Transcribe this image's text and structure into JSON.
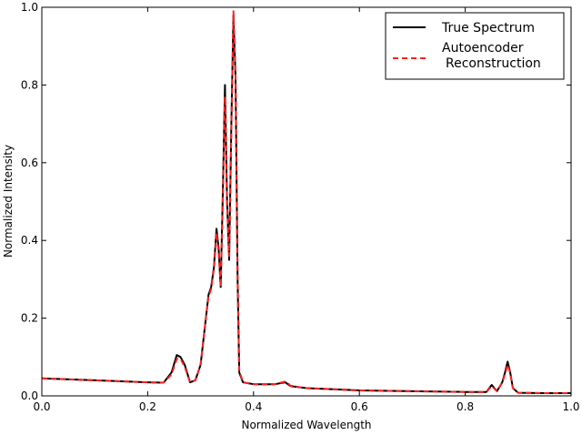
{
  "chart_data": {
    "type": "line",
    "title": "",
    "xlabel": "Normalized Wavelength",
    "ylabel": "Normalized Intensity",
    "xlim": [
      0.0,
      1.0
    ],
    "ylim": [
      0.0,
      1.0
    ],
    "xticks": [
      "0.0",
      "0.2",
      "0.4",
      "0.6",
      "0.8",
      "1.0"
    ],
    "yticks": [
      "0.0",
      "0.2",
      "0.4",
      "0.6",
      "0.8",
      "1.0"
    ],
    "grid": false,
    "legend_position": "top-right",
    "series": [
      {
        "name": "True Spectrum",
        "color": "#000000",
        "style": "solid",
        "x": [
          0.0,
          0.1,
          0.2,
          0.23,
          0.245,
          0.255,
          0.262,
          0.27,
          0.28,
          0.29,
          0.3,
          0.31,
          0.315,
          0.32,
          0.325,
          0.33,
          0.334,
          0.338,
          0.342,
          0.346,
          0.35,
          0.354,
          0.358,
          0.362,
          0.366,
          0.37,
          0.373,
          0.38,
          0.4,
          0.44,
          0.46,
          0.465,
          0.47,
          0.5,
          0.6,
          0.7,
          0.8,
          0.82,
          0.84,
          0.85,
          0.86,
          0.87,
          0.875,
          0.88,
          0.885,
          0.89,
          0.9,
          0.95,
          1.0
        ],
        "y": [
          0.045,
          0.04,
          0.035,
          0.034,
          0.06,
          0.105,
          0.1,
          0.08,
          0.035,
          0.04,
          0.08,
          0.2,
          0.26,
          0.28,
          0.33,
          0.43,
          0.38,
          0.28,
          0.52,
          0.8,
          0.5,
          0.35,
          0.7,
          0.98,
          0.82,
          0.3,
          0.06,
          0.035,
          0.03,
          0.03,
          0.035,
          0.03,
          0.025,
          0.02,
          0.014,
          0.012,
          0.01,
          0.01,
          0.01,
          0.028,
          0.012,
          0.035,
          0.06,
          0.088,
          0.06,
          0.02,
          0.008,
          0.007,
          0.007
        ]
      },
      {
        "name": "Autoencoder\nReconstruction",
        "color": "#ff2020",
        "style": "dashed",
        "x": [
          0.0,
          0.1,
          0.2,
          0.23,
          0.245,
          0.255,
          0.262,
          0.27,
          0.28,
          0.29,
          0.3,
          0.31,
          0.315,
          0.32,
          0.325,
          0.33,
          0.334,
          0.338,
          0.342,
          0.346,
          0.35,
          0.354,
          0.358,
          0.362,
          0.366,
          0.37,
          0.373,
          0.38,
          0.4,
          0.44,
          0.46,
          0.465,
          0.47,
          0.5,
          0.6,
          0.7,
          0.8,
          0.82,
          0.84,
          0.85,
          0.86,
          0.87,
          0.875,
          0.88,
          0.885,
          0.89,
          0.9,
          0.95,
          1.0
        ],
        "y": [
          0.045,
          0.04,
          0.035,
          0.034,
          0.055,
          0.095,
          0.095,
          0.075,
          0.035,
          0.04,
          0.08,
          0.2,
          0.255,
          0.275,
          0.325,
          0.42,
          0.37,
          0.28,
          0.5,
          0.77,
          0.49,
          0.36,
          0.68,
          0.99,
          0.83,
          0.3,
          0.065,
          0.035,
          0.03,
          0.03,
          0.037,
          0.033,
          0.026,
          0.02,
          0.014,
          0.012,
          0.01,
          0.01,
          0.01,
          0.025,
          0.012,
          0.035,
          0.055,
          0.08,
          0.058,
          0.02,
          0.008,
          0.007,
          0.007
        ]
      }
    ]
  }
}
